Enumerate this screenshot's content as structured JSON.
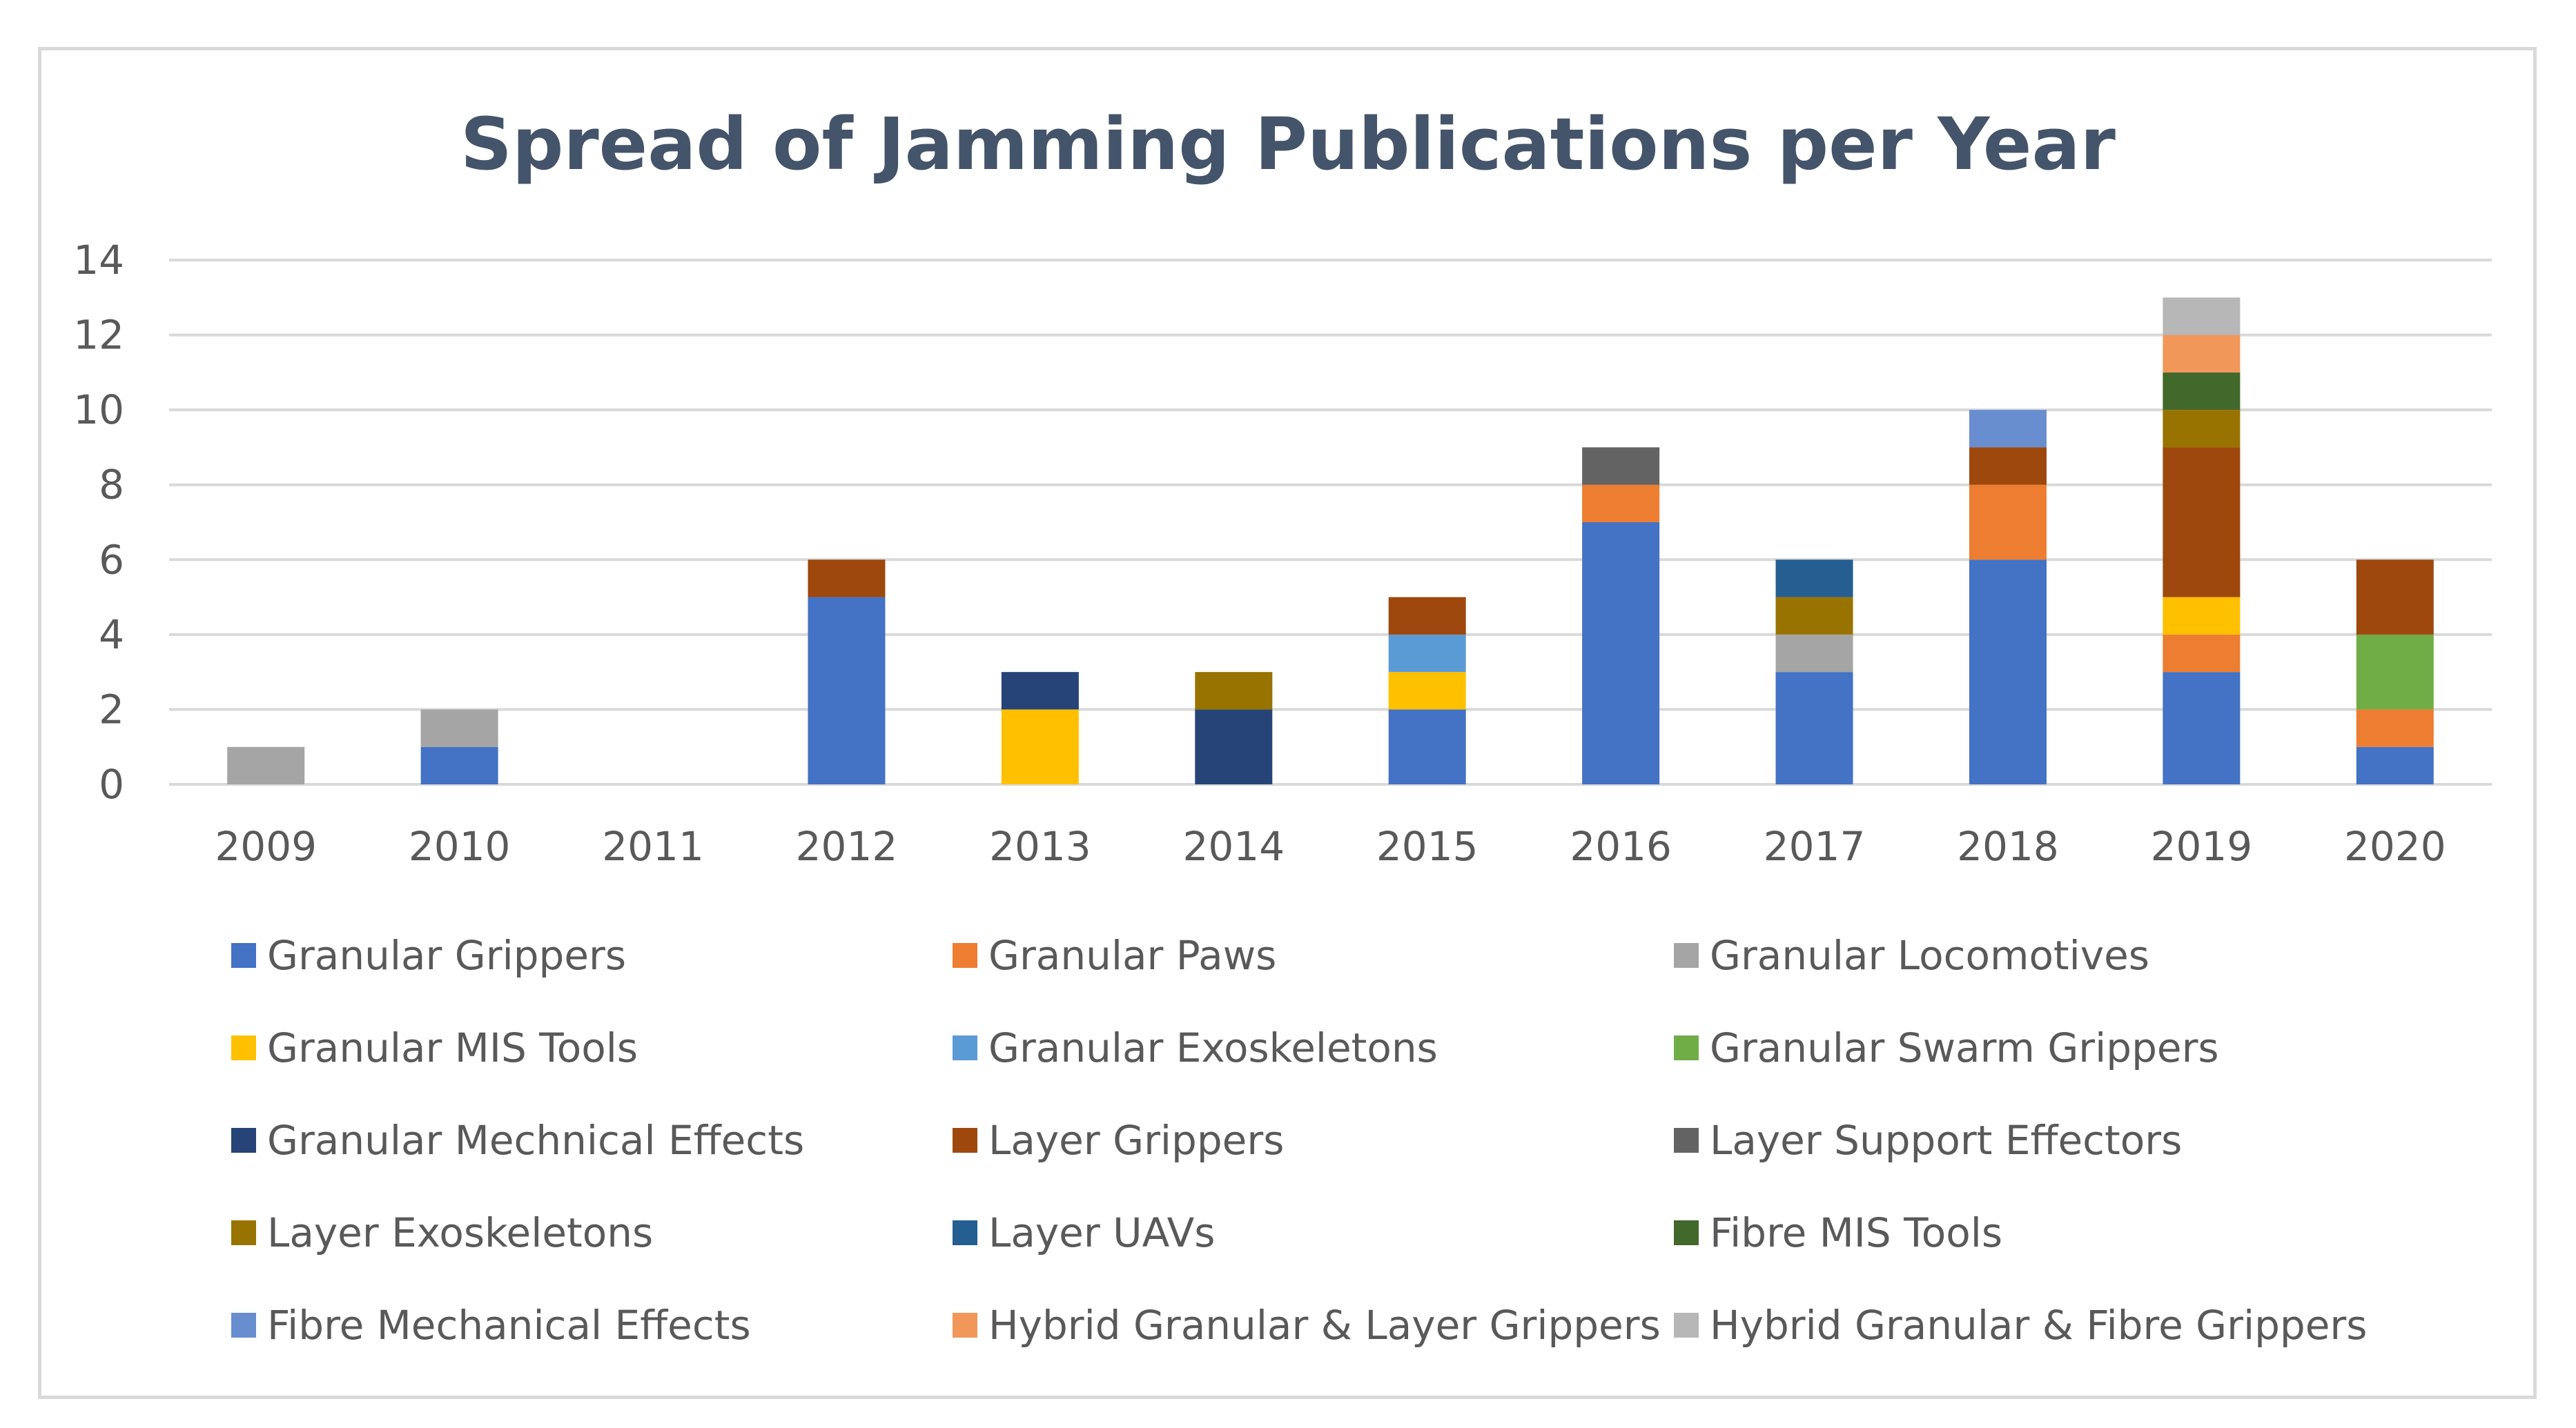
{
  "chart_data": {
    "type": "bar",
    "stacked": true,
    "title": "Spread of Jamming Publications per Year",
    "xlabel": "",
    "ylabel": "",
    "ylim": [
      0,
      14
    ],
    "yticks": [
      0,
      2,
      4,
      6,
      8,
      10,
      12,
      14
    ],
    "grid": true,
    "legend_position": "bottom",
    "categories": [
      "2009",
      "2010",
      "2011",
      "2012",
      "2013",
      "2014",
      "2015",
      "2016",
      "2017",
      "2018",
      "2019",
      "2020"
    ],
    "series": [
      {
        "name": "Granular Grippers",
        "color": "#4472c4",
        "values": [
          0,
          1,
          0,
          5,
          0,
          0,
          2,
          7,
          3,
          6,
          3,
          1
        ]
      },
      {
        "name": "Granular Paws",
        "color": "#ed7d31",
        "values": [
          0,
          0,
          0,
          0,
          0,
          0,
          0,
          1,
          0,
          2,
          1,
          1
        ]
      },
      {
        "name": "Granular Locomotives",
        "color": "#a5a5a5",
        "values": [
          1,
          1,
          0,
          0,
          0,
          0,
          0,
          0,
          1,
          0,
          0,
          0
        ]
      },
      {
        "name": "Granular MIS Tools",
        "color": "#ffc000",
        "values": [
          0,
          0,
          0,
          0,
          2,
          0,
          1,
          0,
          0,
          0,
          1,
          0
        ]
      },
      {
        "name": "Granular Exoskeletons",
        "color": "#5b9bd5",
        "values": [
          0,
          0,
          0,
          0,
          0,
          0,
          1,
          0,
          0,
          0,
          0,
          0
        ]
      },
      {
        "name": "Granular Swarm Grippers",
        "color": "#70ad47",
        "values": [
          0,
          0,
          0,
          0,
          0,
          0,
          0,
          0,
          0,
          0,
          0,
          2
        ]
      },
      {
        "name": "Granular Mechnical Effects",
        "color": "#264478",
        "values": [
          0,
          0,
          0,
          0,
          1,
          2,
          0,
          0,
          0,
          0,
          0,
          0
        ]
      },
      {
        "name": "Layer Grippers",
        "color": "#9e480e",
        "values": [
          0,
          0,
          0,
          1,
          0,
          0,
          1,
          0,
          0,
          1,
          4,
          2
        ]
      },
      {
        "name": "Layer Support Effectors",
        "color": "#636363",
        "values": [
          0,
          0,
          0,
          0,
          0,
          0,
          0,
          1,
          0,
          0,
          0,
          0
        ]
      },
      {
        "name": "Layer Exoskeletons",
        "color": "#997300",
        "values": [
          0,
          0,
          0,
          0,
          0,
          1,
          0,
          0,
          1,
          0,
          1,
          0
        ]
      },
      {
        "name": "Layer UAVs",
        "color": "#255e91",
        "values": [
          0,
          0,
          0,
          0,
          0,
          0,
          0,
          0,
          1,
          0,
          0,
          0
        ]
      },
      {
        "name": "Fibre MIS Tools",
        "color": "#43682b",
        "values": [
          0,
          0,
          0,
          0,
          0,
          0,
          0,
          0,
          0,
          0,
          1,
          0
        ]
      },
      {
        "name": "Fibre Mechanical Effects",
        "color": "#698ed0",
        "values": [
          0,
          0,
          0,
          0,
          0,
          0,
          0,
          0,
          0,
          1,
          0,
          0
        ]
      },
      {
        "name": "Hybrid Granular & Layer Grippers",
        "color": "#f1975a",
        "values": [
          0,
          0,
          0,
          0,
          0,
          0,
          0,
          0,
          0,
          0,
          1,
          0
        ]
      },
      {
        "name": "Hybrid Granular & Fibre Grippers",
        "color": "#b7b7b7",
        "values": [
          0,
          0,
          0,
          0,
          0,
          0,
          0,
          0,
          0,
          0,
          1,
          0
        ]
      }
    ]
  }
}
